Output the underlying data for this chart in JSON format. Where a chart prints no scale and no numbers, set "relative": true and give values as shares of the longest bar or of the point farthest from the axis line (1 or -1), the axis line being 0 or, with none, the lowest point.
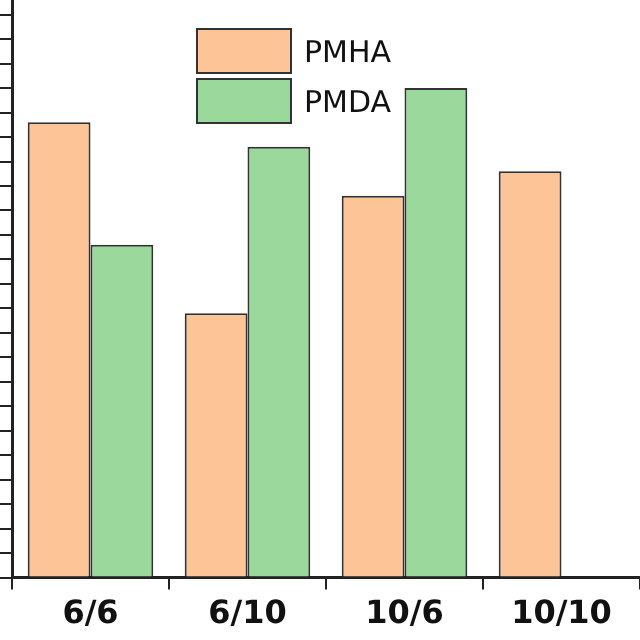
{
  "chart_data": {
    "type": "bar",
    "relative": true,
    "categories": [
      "6/6",
      "6/10",
      "10/6",
      "10/10"
    ],
    "legend": "top",
    "series": [
      {
        "name": "PMHA",
        "color": "#fdc597",
        "values": [
          0.93,
          0.54,
          0.78,
          0.83
        ]
      },
      {
        "name": "PMDA",
        "color": "#9bd89b",
        "values": [
          0.68,
          0.88,
          1,
          null
        ]
      }
    ]
  }
}
